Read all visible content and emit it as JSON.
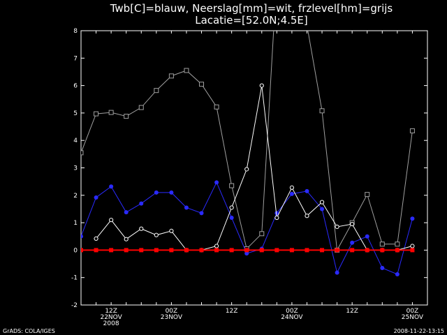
{
  "chart_data": {
    "type": "line",
    "title_line1": "Twb[C]=blauw, Neerslag[mm]=wit, frzlevel[hm]=grijs",
    "title_line2": "Lacatie=[52.0N;4.5E]",
    "ylim": [
      -2,
      8
    ],
    "yticks": [
      "-2",
      "-1",
      "0",
      "1",
      "2",
      "3",
      "4",
      "5",
      "6",
      "7",
      "8"
    ],
    "x_count": 24,
    "xticks": [
      {
        "index": 2,
        "lines": [
          "12Z",
          "22NOV",
          "2008"
        ]
      },
      {
        "index": 6,
        "lines": [
          "00Z",
          "23NOV"
        ]
      },
      {
        "index": 10,
        "lines": [
          "12Z"
        ]
      },
      {
        "index": 14,
        "lines": [
          "00Z",
          "24NOV"
        ]
      },
      {
        "index": 18,
        "lines": [
          "12Z"
        ]
      },
      {
        "index": 22,
        "lines": [
          "00Z",
          "25NOV"
        ]
      }
    ],
    "series": [
      {
        "key": "frzlevel",
        "color": "#a0a0a0",
        "marker": "square-open",
        "values": [
          3.55,
          4.97,
          5.02,
          4.88,
          5.2,
          5.82,
          6.35,
          6.55,
          6.05,
          5.22,
          2.35,
          0.05,
          0.6,
          10.0,
          10.0,
          8.2,
          5.08,
          0.0,
          1.0,
          2.03,
          0.22,
          0.22,
          4.35
        ]
      },
      {
        "key": "twb",
        "color": "#2a2aff",
        "marker": "dot-filled",
        "values": [
          0.5,
          1.92,
          2.32,
          1.38,
          1.7,
          2.1,
          2.1,
          1.55,
          1.35,
          2.47,
          1.18,
          -0.12,
          0.05,
          1.35,
          2.05,
          2.15,
          1.5,
          -0.82,
          0.27,
          0.5,
          -0.65,
          -0.88,
          1.15
        ]
      },
      {
        "key": "neerslag",
        "color": "#ffffff",
        "marker": "dot-open",
        "values": [
          null,
          0.42,
          1.1,
          0.4,
          0.78,
          0.55,
          0.7,
          0.0,
          0.0,
          0.15,
          1.55,
          2.95,
          6.0,
          1.18,
          2.28,
          1.25,
          1.75,
          0.85,
          0.95,
          0.0,
          0.0,
          0.0,
          0.15
        ]
      },
      {
        "key": "zero",
        "color": "#ff0000",
        "marker": "square-filled",
        "values": [
          0,
          0,
          0,
          0,
          0,
          0,
          0,
          0,
          0,
          0,
          0,
          0,
          0,
          0,
          0,
          0,
          0,
          0,
          0,
          0,
          0,
          0,
          0
        ]
      }
    ]
  },
  "footer": {
    "left": "GrADS: COLA/IGES",
    "right": "2008-11-22-13:15"
  }
}
